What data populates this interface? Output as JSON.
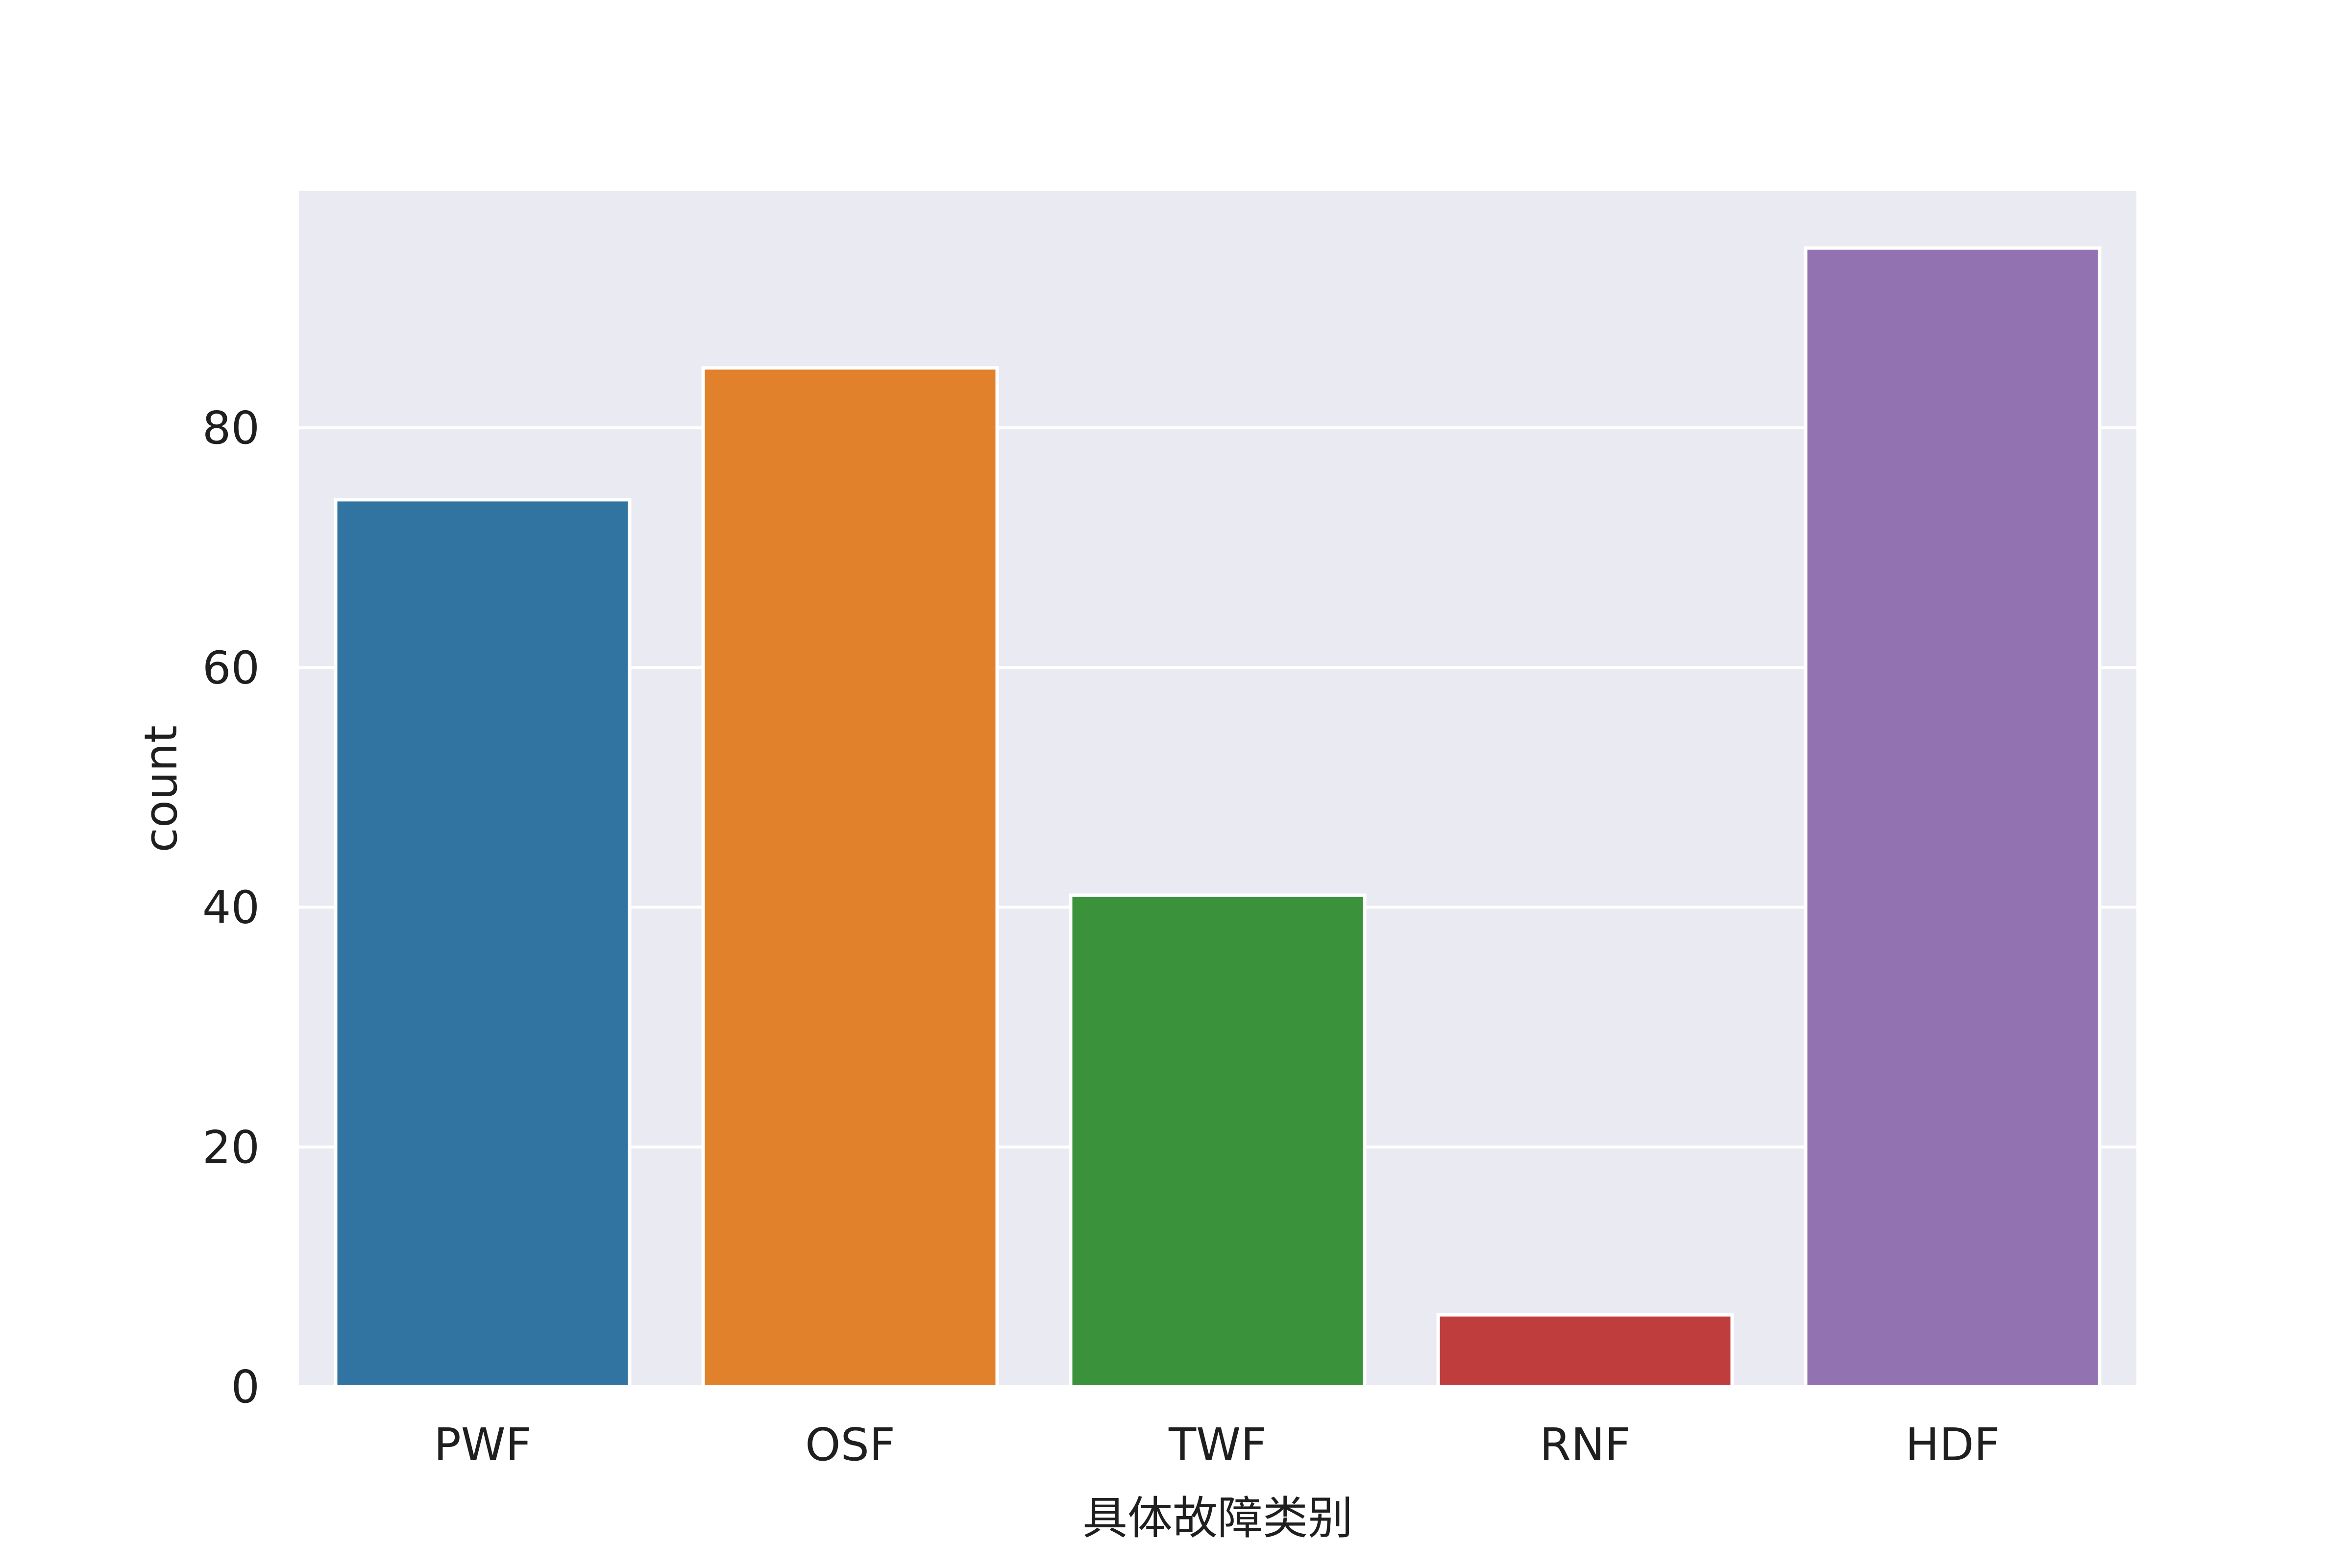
{
  "chart_data": {
    "type": "bar",
    "categories": [
      "PWF",
      "OSF",
      "TWF",
      "RNF",
      "HDF"
    ],
    "values": [
      74,
      85,
      41,
      6,
      95
    ],
    "colors": [
      "#3274a1",
      "#e1812c",
      "#3a923a",
      "#c03d3e",
      "#9372b2"
    ],
    "title": "",
    "xlabel": "具体故障类别",
    "ylabel": "count",
    "ylim": [
      0,
      99.75
    ],
    "yticks": [
      0,
      20,
      40,
      60,
      80
    ],
    "ytick_labels": [
      "0",
      "20",
      "40",
      "60",
      "80"
    ],
    "grid": true,
    "background": "#eaeaf2",
    "grid_color": "#ffffff"
  }
}
